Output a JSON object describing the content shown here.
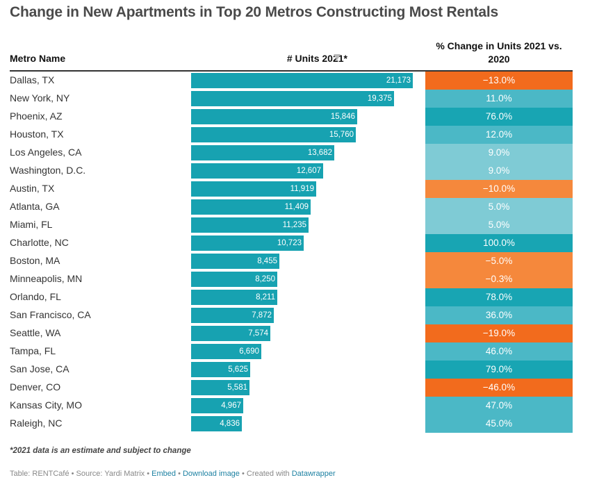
{
  "title": "Change in New Apartments in Top 20 Metros Constructing Most Rentals",
  "headers": {
    "metro": "Metro Name",
    "units": "# Units 2021*",
    "change_line1": "% Change in Units 2021 vs.",
    "change_line2": "2020"
  },
  "chart_data": {
    "type": "table",
    "columns": [
      "Metro Name",
      "# Units 2021*",
      "% Change in Units 2021 vs. 2020"
    ],
    "bar_scale_max": 21173,
    "rows": [
      {
        "metro": "Dallas, TX",
        "units": 21173,
        "units_label": "21,173",
        "change": -13.0,
        "change_label": "−13.0%"
      },
      {
        "metro": "New York, NY",
        "units": 19375,
        "units_label": "19,375",
        "change": 11.0,
        "change_label": "11.0%"
      },
      {
        "metro": "Phoenix, AZ",
        "units": 15846,
        "units_label": "15,846",
        "change": 76.0,
        "change_label": "76.0%"
      },
      {
        "metro": "Houston, TX",
        "units": 15760,
        "units_label": "15,760",
        "change": 12.0,
        "change_label": "12.0%"
      },
      {
        "metro": "Los Angeles, CA",
        "units": 13682,
        "units_label": "13,682",
        "change": 9.0,
        "change_label": "9.0%"
      },
      {
        "metro": "Washington, D.C.",
        "units": 12607,
        "units_label": "12,607",
        "change": 9.0,
        "change_label": "9.0%"
      },
      {
        "metro": "Austin, TX",
        "units": 11919,
        "units_label": "11,919",
        "change": -10.0,
        "change_label": "−10.0%"
      },
      {
        "metro": "Atlanta, GA",
        "units": 11409,
        "units_label": "11,409",
        "change": 5.0,
        "change_label": "5.0%"
      },
      {
        "metro": "Miami, FL",
        "units": 11235,
        "units_label": "11,235",
        "change": 5.0,
        "change_label": "5.0%"
      },
      {
        "metro": "Charlotte, NC",
        "units": 10723,
        "units_label": "10,723",
        "change": 100.0,
        "change_label": "100.0%"
      },
      {
        "metro": "Boston, MA",
        "units": 8455,
        "units_label": "8,455",
        "change": -5.0,
        "change_label": "−5.0%"
      },
      {
        "metro": "Minneapolis, MN",
        "units": 8250,
        "units_label": "8,250",
        "change": -0.3,
        "change_label": "−0.3%"
      },
      {
        "metro": "Orlando, FL",
        "units": 8211,
        "units_label": "8,211",
        "change": 78.0,
        "change_label": "78.0%"
      },
      {
        "metro": "San Francisco, CA",
        "units": 7872,
        "units_label": "7,872",
        "change": 36.0,
        "change_label": "36.0%"
      },
      {
        "metro": "Seattle, WA",
        "units": 7574,
        "units_label": "7,574",
        "change": -19.0,
        "change_label": "−19.0%"
      },
      {
        "metro": "Tampa, FL",
        "units": 6690,
        "units_label": "6,690",
        "change": 46.0,
        "change_label": "46.0%"
      },
      {
        "metro": "San Jose, CA",
        "units": 5625,
        "units_label": "5,625",
        "change": 79.0,
        "change_label": "79.0%"
      },
      {
        "metro": "Denver, CO",
        "units": 5581,
        "units_label": "5,581",
        "change": -46.0,
        "change_label": "−46.0%"
      },
      {
        "metro": "Kansas City, MO",
        "units": 4967,
        "units_label": "4,967",
        "change": 47.0,
        "change_label": "47.0%"
      },
      {
        "metro": "Raleigh, NC",
        "units": 4836,
        "units_label": "4,836",
        "change": 45.0,
        "change_label": "45.0%"
      }
    ]
  },
  "colors": {
    "bar": "#17a2b1",
    "heat_negative_strong": "#f26b1d",
    "heat_negative_light": "#f5883c",
    "heat_positive_light": "#7fcbd5",
    "heat_positive_mid": "#4bb8c6",
    "heat_positive_strong": "#18a5b3"
  },
  "footnote": "*2021 data is an estimate and subject to change",
  "source": {
    "prefix": "Table: RENTCafé • Source: Yardi Matrix • ",
    "embed": "Embed",
    "sep1": " • ",
    "download": "Download image",
    "sep2": " • Created with ",
    "datawrapper": "Datawrapper"
  }
}
